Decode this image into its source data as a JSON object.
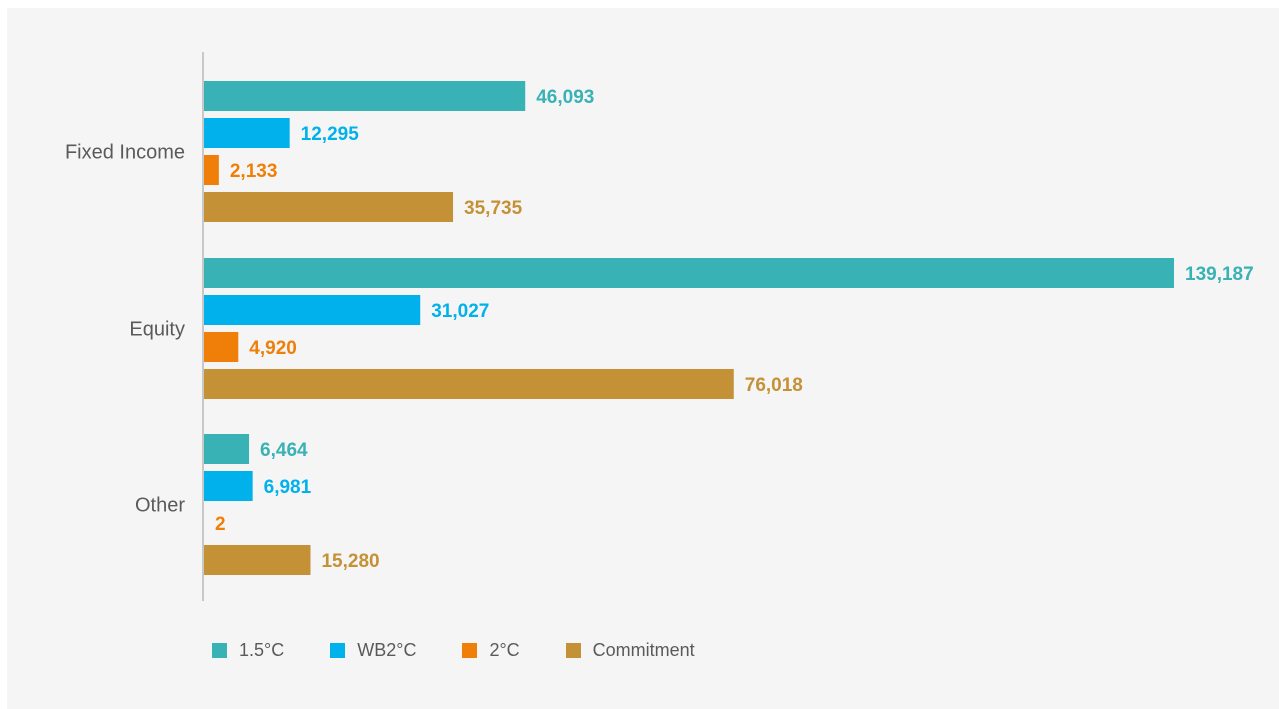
{
  "chart_data": {
    "type": "bar",
    "orientation": "horizontal",
    "categories": [
      "Fixed Income",
      "Equity",
      "Other"
    ],
    "series": [
      {
        "name": "1.5°C",
        "color": "#38b2b4",
        "values": [
          46093,
          139187,
          6464
        ]
      },
      {
        "name": "WB2°C",
        "color": "#00b1eb",
        "values": [
          12295,
          31027,
          6981
        ]
      },
      {
        "name": "2°C",
        "color": "#f07f09",
        "values": [
          2133,
          4920,
          2
        ]
      },
      {
        "name": "Commitment",
        "color": "#c49136",
        "values": [
          35735,
          76018,
          15280
        ]
      }
    ],
    "value_labels": [
      [
        "46,093",
        "139,187",
        "6,464"
      ],
      [
        "12,295",
        "31,027",
        "6,981"
      ],
      [
        "2,133",
        "4,920",
        "2"
      ],
      [
        "35,735",
        "76,018",
        "15,280"
      ]
    ],
    "xlim": [
      0,
      139187
    ],
    "grid": false,
    "legend_position": "bottom-left"
  }
}
